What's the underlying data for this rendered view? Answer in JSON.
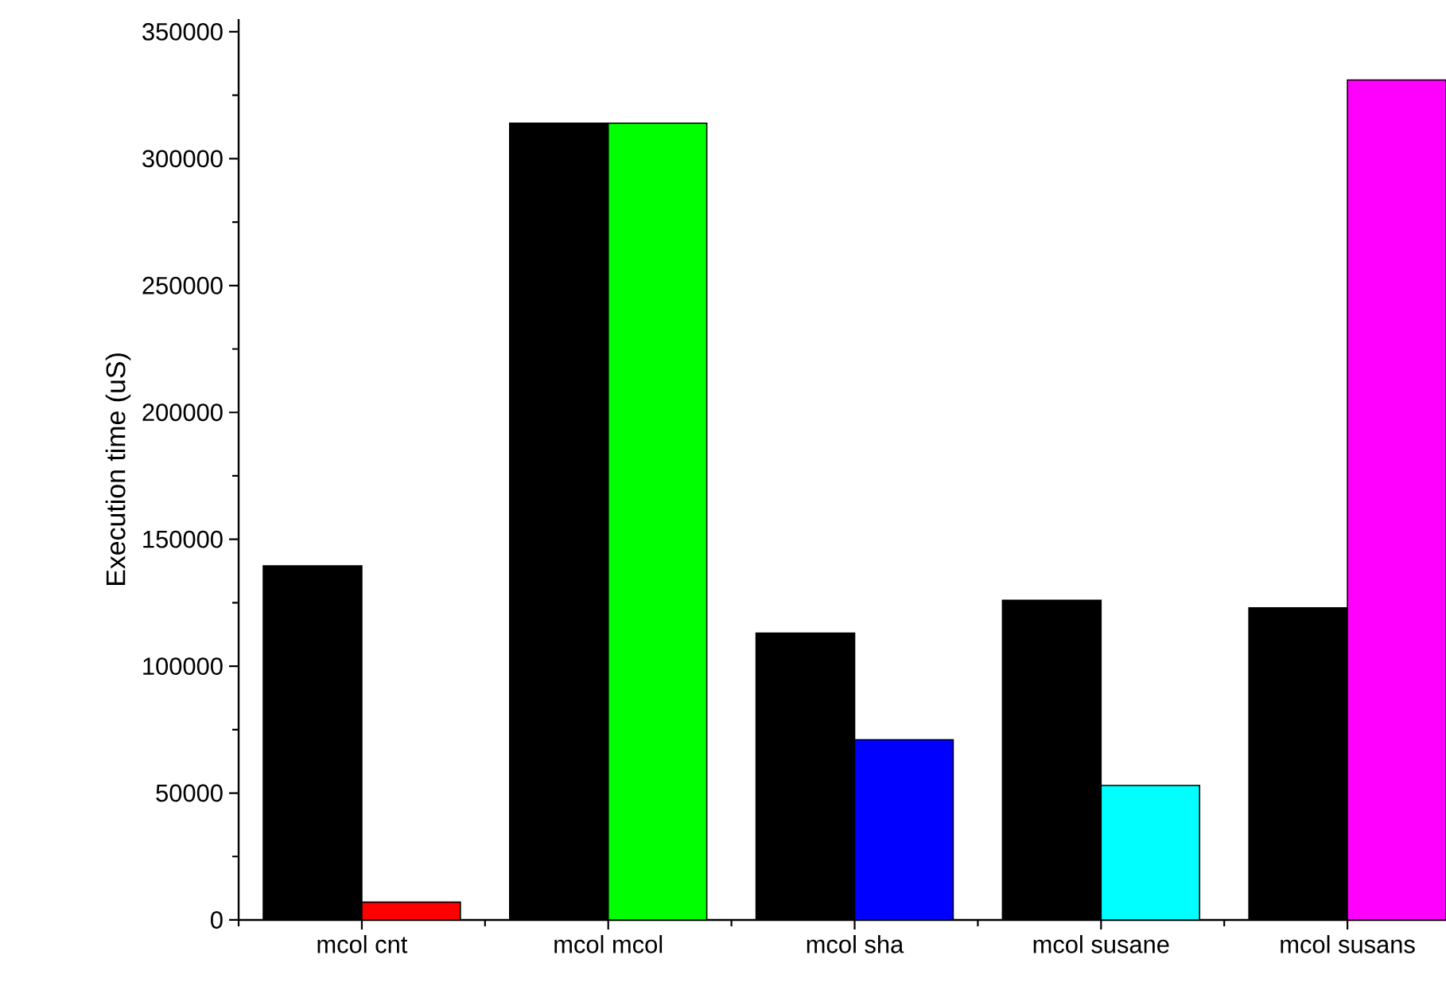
{
  "chart_data": {
    "type": "bar",
    "ylabel": "Execution time (uS)",
    "categories": [
      "mcol  cnt",
      "mcol  mcol",
      "mcol  sha",
      "mcol susane",
      "mcol susans"
    ],
    "series": [
      {
        "color": "#000000",
        "values": [
          139500,
          314000,
          113000,
          126000,
          123000
        ]
      },
      {
        "colors": [
          "#ff0000",
          "#00ff00",
          "#0000ff",
          "#00ffff",
          "#ff00ff"
        ],
        "values": [
          7000,
          314000,
          71000,
          53000,
          331000
        ]
      }
    ],
    "ylim": [
      0,
      355000
    ],
    "yticks": [
      0,
      50000,
      100000,
      150000,
      200000,
      250000,
      300000,
      350000
    ],
    "grid": false
  }
}
